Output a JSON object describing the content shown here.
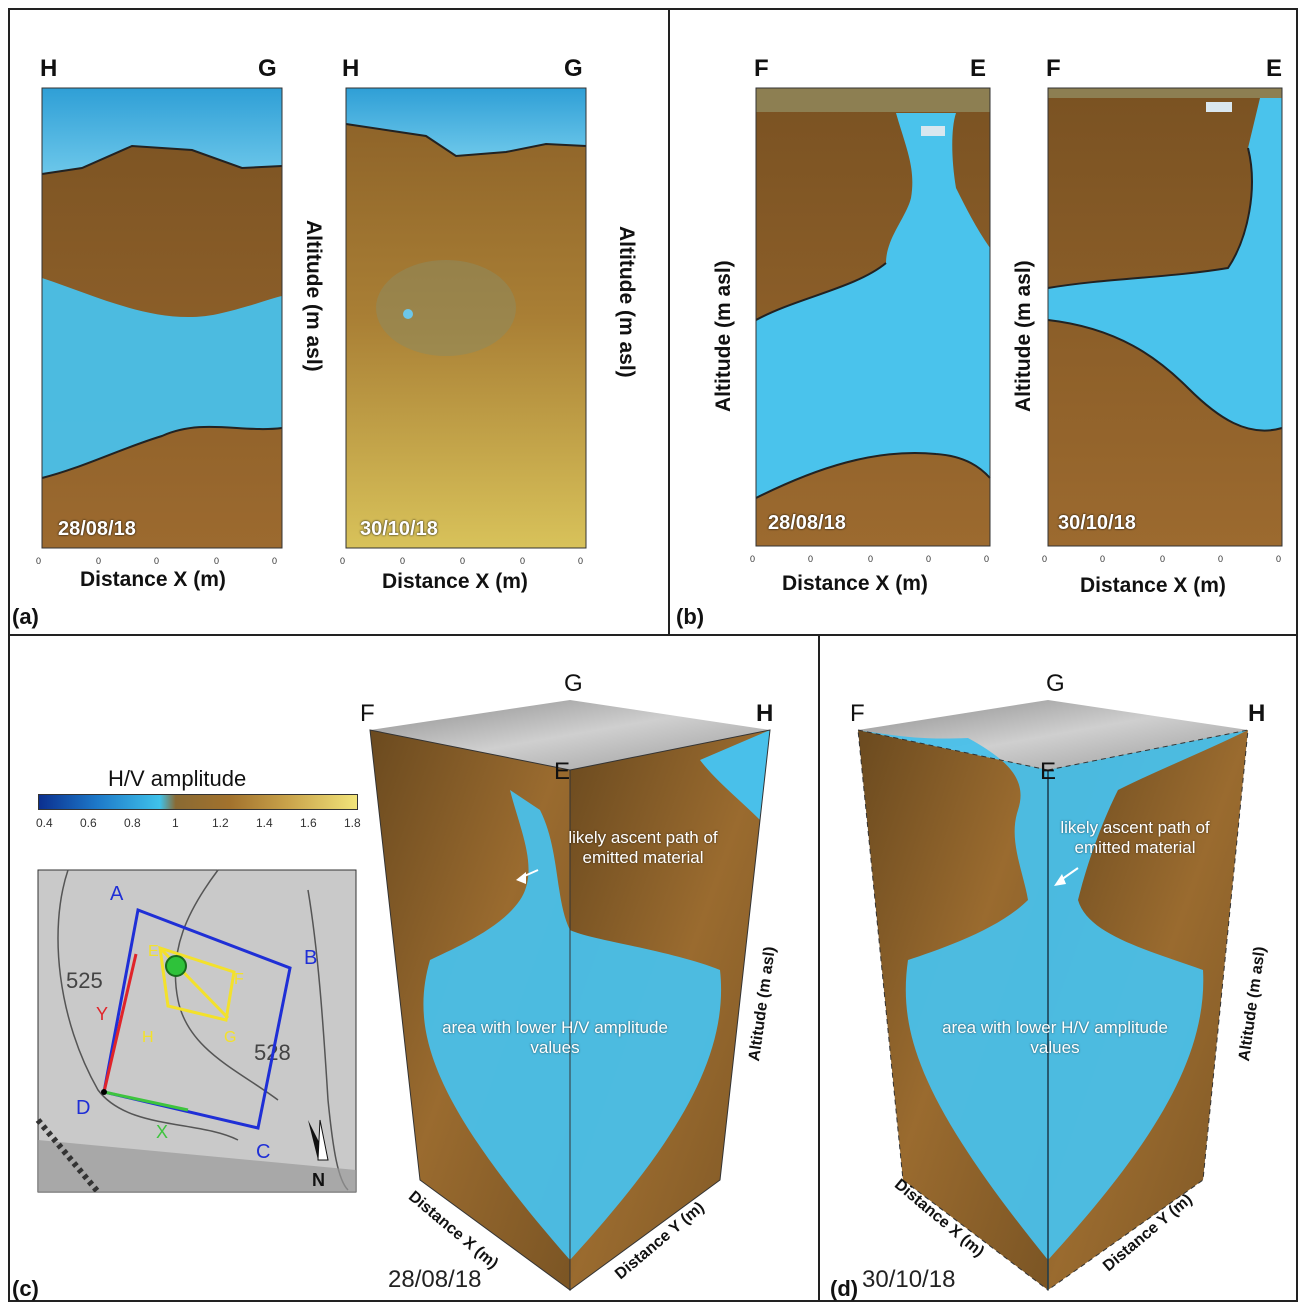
{
  "panels": {
    "a": {
      "tag": "(a)",
      "left": {
        "start": "H",
        "end": "G",
        "date": "28/08/18",
        "xlabel": "Distance X (m)",
        "ylabel": "Altitude (m asl)"
      },
      "right": {
        "start": "H",
        "end": "G",
        "date": "30/10/18",
        "xlabel": "Distance X (m)",
        "ylabel": "Altitude (m asl)"
      }
    },
    "b": {
      "tag": "(b)",
      "left": {
        "start": "F",
        "end": "E",
        "date": "28/08/18",
        "xlabel": "Distance X (m)",
        "ylabel": "Altitude (m asl)"
      },
      "right": {
        "start": "F",
        "end": "E",
        "date": "30/10/18",
        "xlabel": "Distance X (m)",
        "ylabel": "Altitude (m asl)"
      }
    },
    "c": {
      "tag": "(c)",
      "date": "28/08/18",
      "corners": {
        "f": "F",
        "g": "G",
        "h": "H",
        "e": "E"
      },
      "annotation_path": "likely ascent path of emitted material",
      "annotation_area": "area with lower H/V amplitude values",
      "axis_x": "Distance X (m)",
      "axis_y": "Distance Y (m)",
      "axis_z": "Altitude (m asl)"
    },
    "d": {
      "tag": "(d)",
      "date": "30/10/18",
      "corners": {
        "f": "F",
        "g": "G",
        "h": "H",
        "e": "E"
      },
      "annotation_path": "likely ascent path of emitted material",
      "annotation_area": "area with lower H/V amplitude values",
      "axis_x": "Distance X (m)",
      "axis_y": "Distance Y (m)",
      "axis_z": "Altitude (m asl)"
    }
  },
  "colorbar": {
    "title": "H/V amplitude",
    "ticks": [
      "0.4",
      "0.6",
      "0.8",
      "1",
      "1.2",
      "1.4",
      "1.6",
      "1.8"
    ],
    "colors": [
      "#0b2f8f",
      "#1d78c8",
      "#3fc2ea",
      "#8a6a33",
      "#a2722d",
      "#c8a24a",
      "#f2e47a"
    ]
  },
  "map": {
    "corners": [
      "A",
      "B",
      "C",
      "D"
    ],
    "contour_labels": [
      "525",
      "528"
    ],
    "axis_y": "Y",
    "axis_x": "X",
    "box_letters": [
      "E",
      "F",
      "G",
      "H"
    ],
    "north": "N",
    "colors": {
      "frame": "#1f2fd6",
      "profile": "#f3e12b",
      "y_axis": "#e0242a",
      "x_axis": "#3ec43e",
      "vent": "#2ec23a"
    }
  }
}
